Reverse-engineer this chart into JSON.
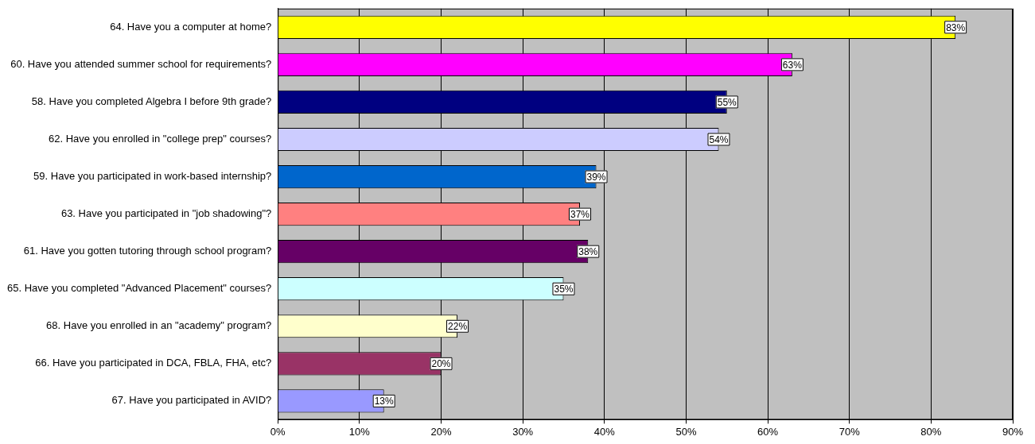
{
  "chart_data": {
    "type": "bar",
    "orientation": "horizontal",
    "categories": [
      "64. Have you a computer at home?",
      "60. Have you attended summer school for requirements?",
      "58. Have you completed Algebra I before 9th grade?",
      "62. Have you enrolled in \"college prep\" courses?",
      "59. Have you participated in work-based internship?",
      "63. Have you participated in \"job shadowing\"?",
      "61. Have you gotten tutoring through school program?",
      "65. Have you completed \"Advanced Placement\" courses?",
      "68. Have you enrolled in an \"academy\" program?",
      "66. Have you participated in DCA, FBLA, FHA, etc?",
      "67. Have you participated in AVID?"
    ],
    "values": [
      83,
      63,
      55,
      54,
      39,
      37,
      38,
      35,
      22,
      20,
      13
    ],
    "value_labels": [
      "83%",
      "63%",
      "55%",
      "54%",
      "39%",
      "37%",
      "38%",
      "35%",
      "22%",
      "20%",
      "13%"
    ],
    "colors": [
      "#ffff00",
      "#ff00ff",
      "#000080",
      "#ccccff",
      "#0066cc",
      "#ff8080",
      "#660066",
      "#ccffff",
      "#ffffcc",
      "#993366",
      "#9999ff"
    ],
    "xlim": [
      0,
      90
    ],
    "xticks": [
      {
        "value": 0,
        "label": "0%"
      },
      {
        "value": 10,
        "label": "10%"
      },
      {
        "value": 20,
        "label": "20%"
      },
      {
        "value": 30,
        "label": "30%"
      },
      {
        "value": 40,
        "label": "40%"
      },
      {
        "value": 50,
        "label": "50%"
      },
      {
        "value": 60,
        "label": "60%"
      },
      {
        "value": 70,
        "label": "70%"
      },
      {
        "value": 80,
        "label": "80%"
      },
      {
        "value": 90,
        "label": "90%"
      }
    ],
    "grid": "x",
    "legend": false
  }
}
